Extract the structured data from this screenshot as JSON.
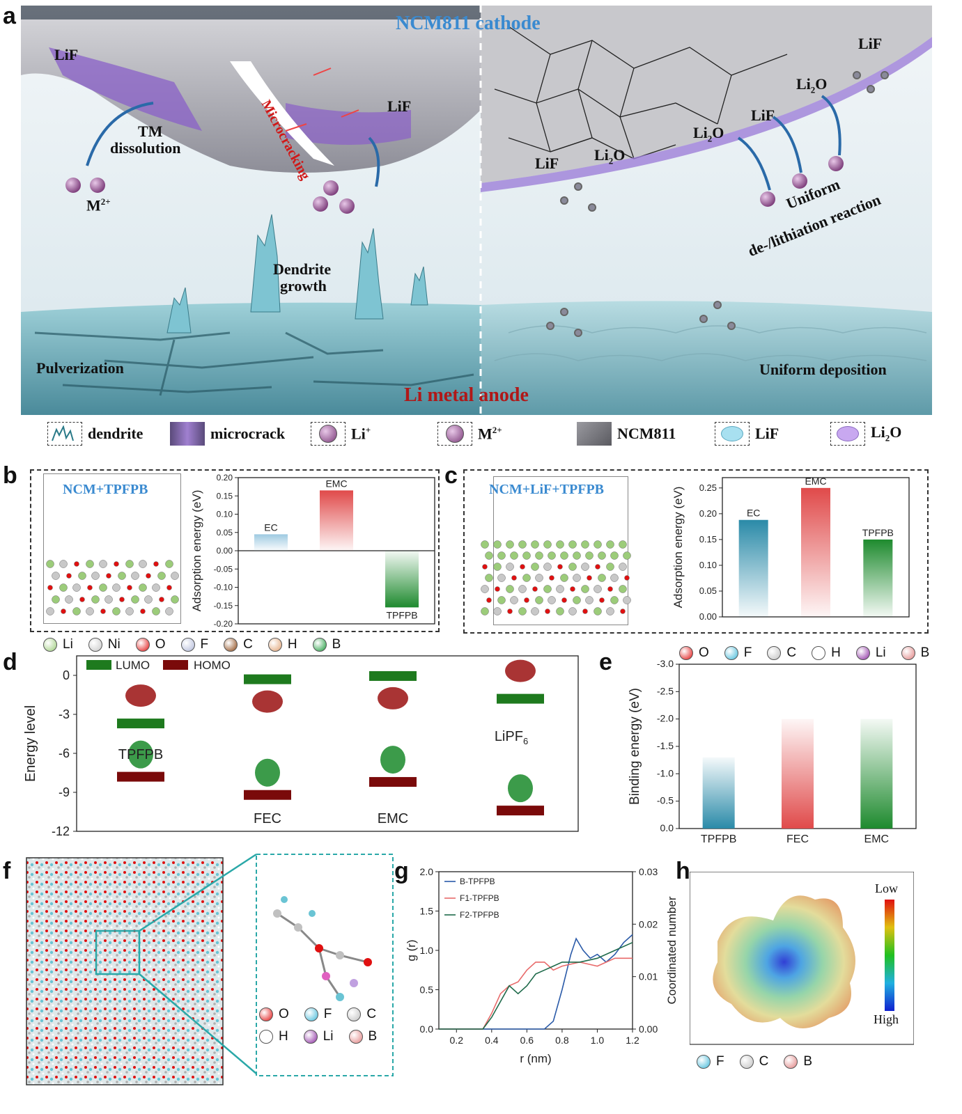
{
  "panel_labels": {
    "a": "a",
    "b": "b",
    "c": "c",
    "d": "d",
    "e": "e",
    "f": "f",
    "g": "g",
    "h": "h"
  },
  "panel_a": {
    "title": "NCM811 cathode",
    "anode": "Li metal anode",
    "labels": {
      "lif": "LiF",
      "li2o_base": "Li",
      "li2o_sub": "2",
      "li2o_end": "O",
      "tm1": "TM",
      "tm2": "dissolution",
      "m_base": "M",
      "m_sup": "2+",
      "micro": "Microcracking",
      "dendrite1": "Dendrite",
      "dendrite2": "growth",
      "pulver": "Pulverization",
      "uniform_dep": "Uniform deposition",
      "uniform1": "Uniform",
      "uniform2": "de-/lithiation reaction",
      "li_ion": "Li",
      "li_sup": "+"
    }
  },
  "legend": {
    "dendrite": "dendrite",
    "microcrack": "microcrack",
    "li_base": "Li",
    "li_sup": "+",
    "m_base": "M",
    "m_sup": "2+",
    "ncm": "NCM811",
    "lif": "LiF",
    "li2o_base": "Li",
    "li2o_sub": "2",
    "li2o_end": "O"
  },
  "panel_b": {
    "title": "NCM+TPFPB",
    "atoms": [
      {
        "sym": "Li",
        "color": "#9ccc7a"
      },
      {
        "sym": "Ni",
        "color": "#c8c8c8"
      },
      {
        "sym": "O",
        "color": "#e01010"
      },
      {
        "sym": "F",
        "color": "#b0b8d8"
      },
      {
        "sym": "C",
        "color": "#8b4513"
      },
      {
        "sym": "H",
        "color": "#e0a070"
      },
      {
        "sym": "B",
        "color": "#1a9a3a"
      }
    ]
  },
  "panel_c": {
    "title": "NCM+LiF+TPFPB"
  },
  "panel_d": {
    "legend": [
      "LUMO",
      "HOMO"
    ],
    "molecules": [
      "TPFPB",
      "FEC",
      "EMC",
      "LiPF"
    ],
    "lipf_sub": "6"
  },
  "panel_e": {
    "atoms": [
      {
        "sym": "O",
        "color": "#e01010"
      },
      {
        "sym": "F",
        "color": "#40b8d8"
      },
      {
        "sym": "C",
        "color": "#c0c0c0"
      },
      {
        "sym": "H",
        "color": "#ffffff"
      },
      {
        "sym": "Li",
        "color": "#8a2aa0"
      },
      {
        "sym": "B",
        "color": "#e08080"
      }
    ]
  },
  "panel_f": {
    "atoms": [
      {
        "sym": "O",
        "color": "#e01010"
      },
      {
        "sym": "F",
        "color": "#40b8d8"
      },
      {
        "sym": "C",
        "color": "#c0c0c0"
      },
      {
        "sym": "H",
        "color": "#ffffff"
      },
      {
        "sym": "Li",
        "color": "#8a2aa0"
      },
      {
        "sym": "B",
        "color": "#e08080"
      }
    ]
  },
  "panel_h": {
    "low": "Low",
    "high": "High",
    "atoms": [
      {
        "sym": "F",
        "color": "#40b8d8"
      },
      {
        "sym": "C",
        "color": "#c0c0c0"
      },
      {
        "sym": "B",
        "color": "#e08080"
      }
    ]
  },
  "chart_data": [
    {
      "id": "b",
      "type": "bar",
      "categories": [
        "EC",
        "EMC",
        "TPFPB"
      ],
      "values": [
        0.045,
        0.165,
        -0.155
      ],
      "ylabel": "Adsorption energy (eV)",
      "ylim": [
        -0.2,
        0.2
      ],
      "yticks": [
        "0.20",
        "0.15",
        "0.10",
        "0.05",
        "0.00",
        "-0.05",
        "-0.10",
        "-0.15",
        "-0.20"
      ],
      "colors": [
        "#9ecae1",
        "#e04a4a",
        "#1e8a2e"
      ]
    },
    {
      "id": "c",
      "type": "bar",
      "categories": [
        "EC",
        "EMC",
        "TPFPB"
      ],
      "values": [
        0.188,
        0.25,
        0.15
      ],
      "ylabel": "Adsorption energy (eV)",
      "ylim": [
        0.0,
        0.27
      ],
      "yticks": [
        "0.25",
        "0.20",
        "0.15",
        "0.10",
        "0.05",
        "0.00"
      ],
      "colors": [
        "#2a8aa8",
        "#e04a4a",
        "#1e8a2e"
      ]
    },
    {
      "id": "d",
      "type": "bar",
      "categories": [
        "TPFPB",
        "FEC",
        "EMC",
        "LiPF6"
      ],
      "series": [
        {
          "name": "LUMO",
          "values": [
            -3.7,
            -0.3,
            -0.05,
            -1.8
          ]
        },
        {
          "name": "HOMO",
          "values": [
            -7.8,
            -9.2,
            -8.2,
            -10.4
          ]
        }
      ],
      "ylabel": "Energy level",
      "ylim": [
        -12,
        1.5
      ],
      "yticks": [
        "0",
        "-3",
        "-6",
        "-9",
        "-12"
      ],
      "colors": [
        "#1e7a1e",
        "#7a0a0a"
      ]
    },
    {
      "id": "e",
      "type": "bar",
      "categories": [
        "TPFPB",
        "FEC",
        "EMC"
      ],
      "values": [
        -1.3,
        -2.0,
        -2.0
      ],
      "ylabel": "Binding energy (eV)",
      "ylim": [
        0,
        -3.0
      ],
      "yticks": [
        "-3.0",
        "-2.5",
        "-2.0",
        "-1.5",
        "-1.0",
        "-0.5",
        "0.0"
      ],
      "colors": [
        "#2a8aa8",
        "#e04a4a",
        "#1e8a2e"
      ]
    },
    {
      "id": "g",
      "type": "line",
      "xlabel": "r (nm)",
      "ylabel": "g (r)",
      "y2label": "Coordinated number",
      "xlim": [
        0.1,
        1.2
      ],
      "ylim": [
        0,
        2.0
      ],
      "y2lim": [
        0,
        0.03
      ],
      "xticks": [
        "0.2",
        "0.4",
        "0.6",
        "0.8",
        "1.0",
        "1.2"
      ],
      "yticks": [
        "0.0",
        "0.5",
        "1.0",
        "1.5",
        "2.0"
      ],
      "y2ticks": [
        "0.00",
        "0.01",
        "0.02",
        "0.03"
      ],
      "series": [
        {
          "name": "B-TPFPB",
          "color": "#2a5aa8",
          "x": [
            0.1,
            0.7,
            0.75,
            0.8,
            0.85,
            0.88,
            0.92,
            0.96,
            1.0,
            1.05,
            1.1,
            1.15,
            1.2
          ],
          "y": [
            0,
            0,
            0.1,
            0.5,
            0.95,
            1.15,
            1.0,
            0.9,
            0.95,
            0.85,
            0.95,
            1.1,
            1.2
          ]
        },
        {
          "name": "F1-TPFPB",
          "color": "#e86a6a",
          "x": [
            0.1,
            0.35,
            0.4,
            0.45,
            0.5,
            0.55,
            0.6,
            0.65,
            0.7,
            0.75,
            0.8,
            0.9,
            1.0,
            1.1,
            1.2
          ],
          "y": [
            0,
            0,
            0.2,
            0.45,
            0.55,
            0.6,
            0.75,
            0.85,
            0.85,
            0.75,
            0.8,
            0.85,
            0.8,
            0.9,
            0.9
          ]
        },
        {
          "name": "F2-TPFPB",
          "color": "#1e6a4a",
          "x": [
            0.1,
            0.35,
            0.4,
            0.45,
            0.5,
            0.55,
            0.6,
            0.65,
            0.7,
            0.75,
            0.8,
            0.9,
            1.0,
            1.1,
            1.2
          ],
          "y": [
            0,
            0,
            0.15,
            0.35,
            0.55,
            0.45,
            0.55,
            0.7,
            0.75,
            0.8,
            0.85,
            0.85,
            0.9,
            1.0,
            1.1
          ]
        }
      ]
    }
  ]
}
